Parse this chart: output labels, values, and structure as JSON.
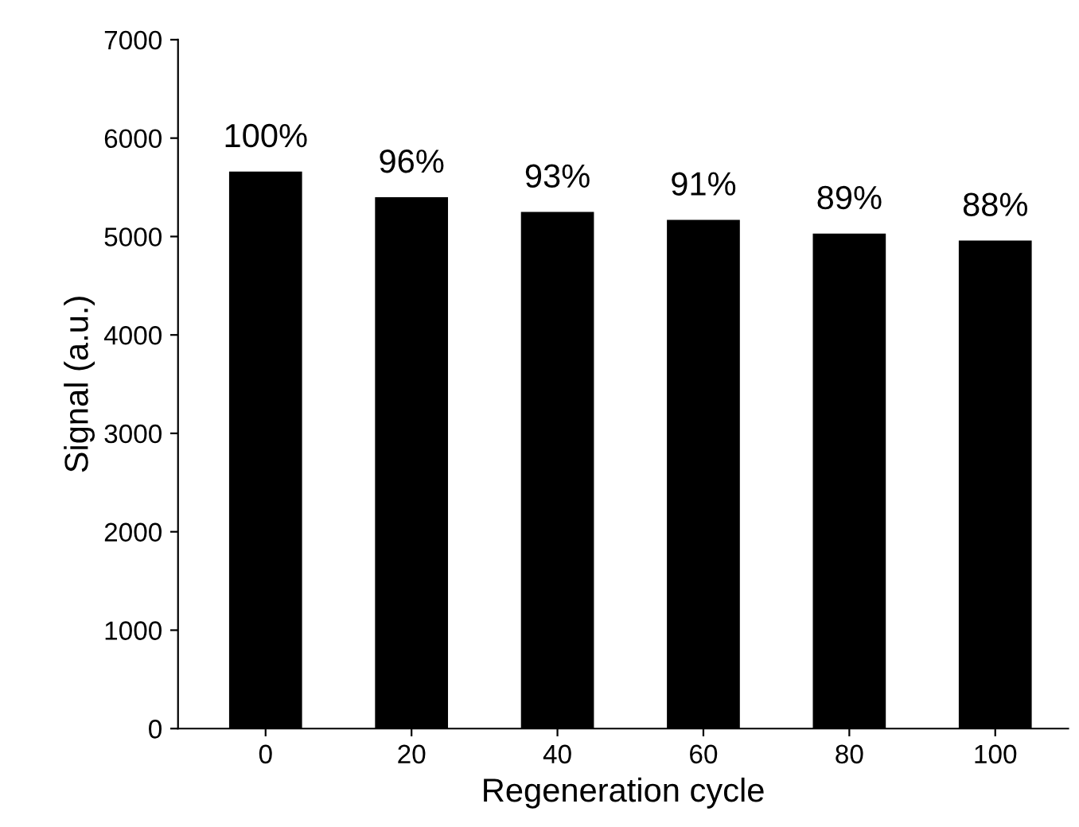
{
  "chart_data": {
    "type": "bar",
    "xlabel": "Regeneration cycle",
    "ylabel": "Signal (a.u.)",
    "categories": [
      "0",
      "20",
      "40",
      "60",
      "80",
      "100"
    ],
    "values": [
      5660,
      5400,
      5250,
      5170,
      5030,
      4960
    ],
    "annotations": [
      {
        "text": "100%",
        "x": "0",
        "y": 5660
      },
      {
        "text": "96%",
        "x": "20",
        "y": 5400
      },
      {
        "text": "93%",
        "x": "40",
        "y": 5250
      },
      {
        "text": "91%",
        "x": "60",
        "y": 5170
      },
      {
        "text": "89%",
        "x": "80",
        "y": 5030
      },
      {
        "text": "88%",
        "x": "100",
        "y": 4960
      }
    ],
    "color": "#000000",
    "ylim": [
      0,
      7000
    ],
    "yticks": [
      0,
      1000,
      2000,
      3000,
      4000,
      5000,
      6000,
      7000
    ],
    "grid": false
  }
}
